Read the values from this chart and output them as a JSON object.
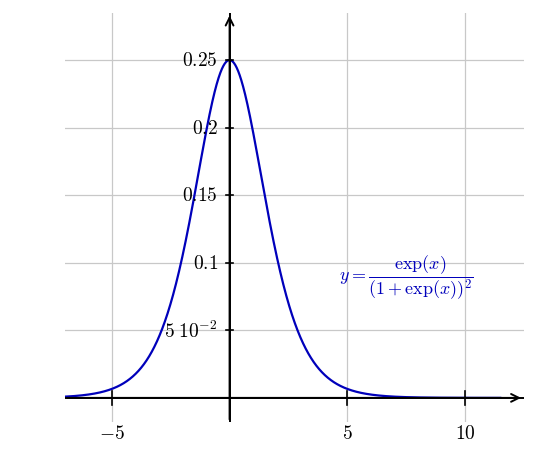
{
  "xlim": [
    -7,
    12.5
  ],
  "ylim": [
    -0.018,
    0.285
  ],
  "x_ticks": [
    -5,
    5,
    10
  ],
  "x_tick_labels": [
    "$-5$",
    "$5$",
    "$10$"
  ],
  "y_ticks": [
    0.05,
    0.1,
    0.15,
    0.2,
    0.25
  ],
  "y_tick_labels": [
    "$5\\;10^{-2}$",
    "$0.1$",
    "$0.15$",
    "$0.2$",
    "$0.25$"
  ],
  "curve_color": "#0000bb",
  "grid_color": "#c8c8c8",
  "annotation_color": "#0000bb",
  "annotation_text": "$y = \\dfrac{\\exp(x)}{(1+\\exp(x))^2}$",
  "annotation_fontsize": 13,
  "tick_label_fontsize": 14
}
